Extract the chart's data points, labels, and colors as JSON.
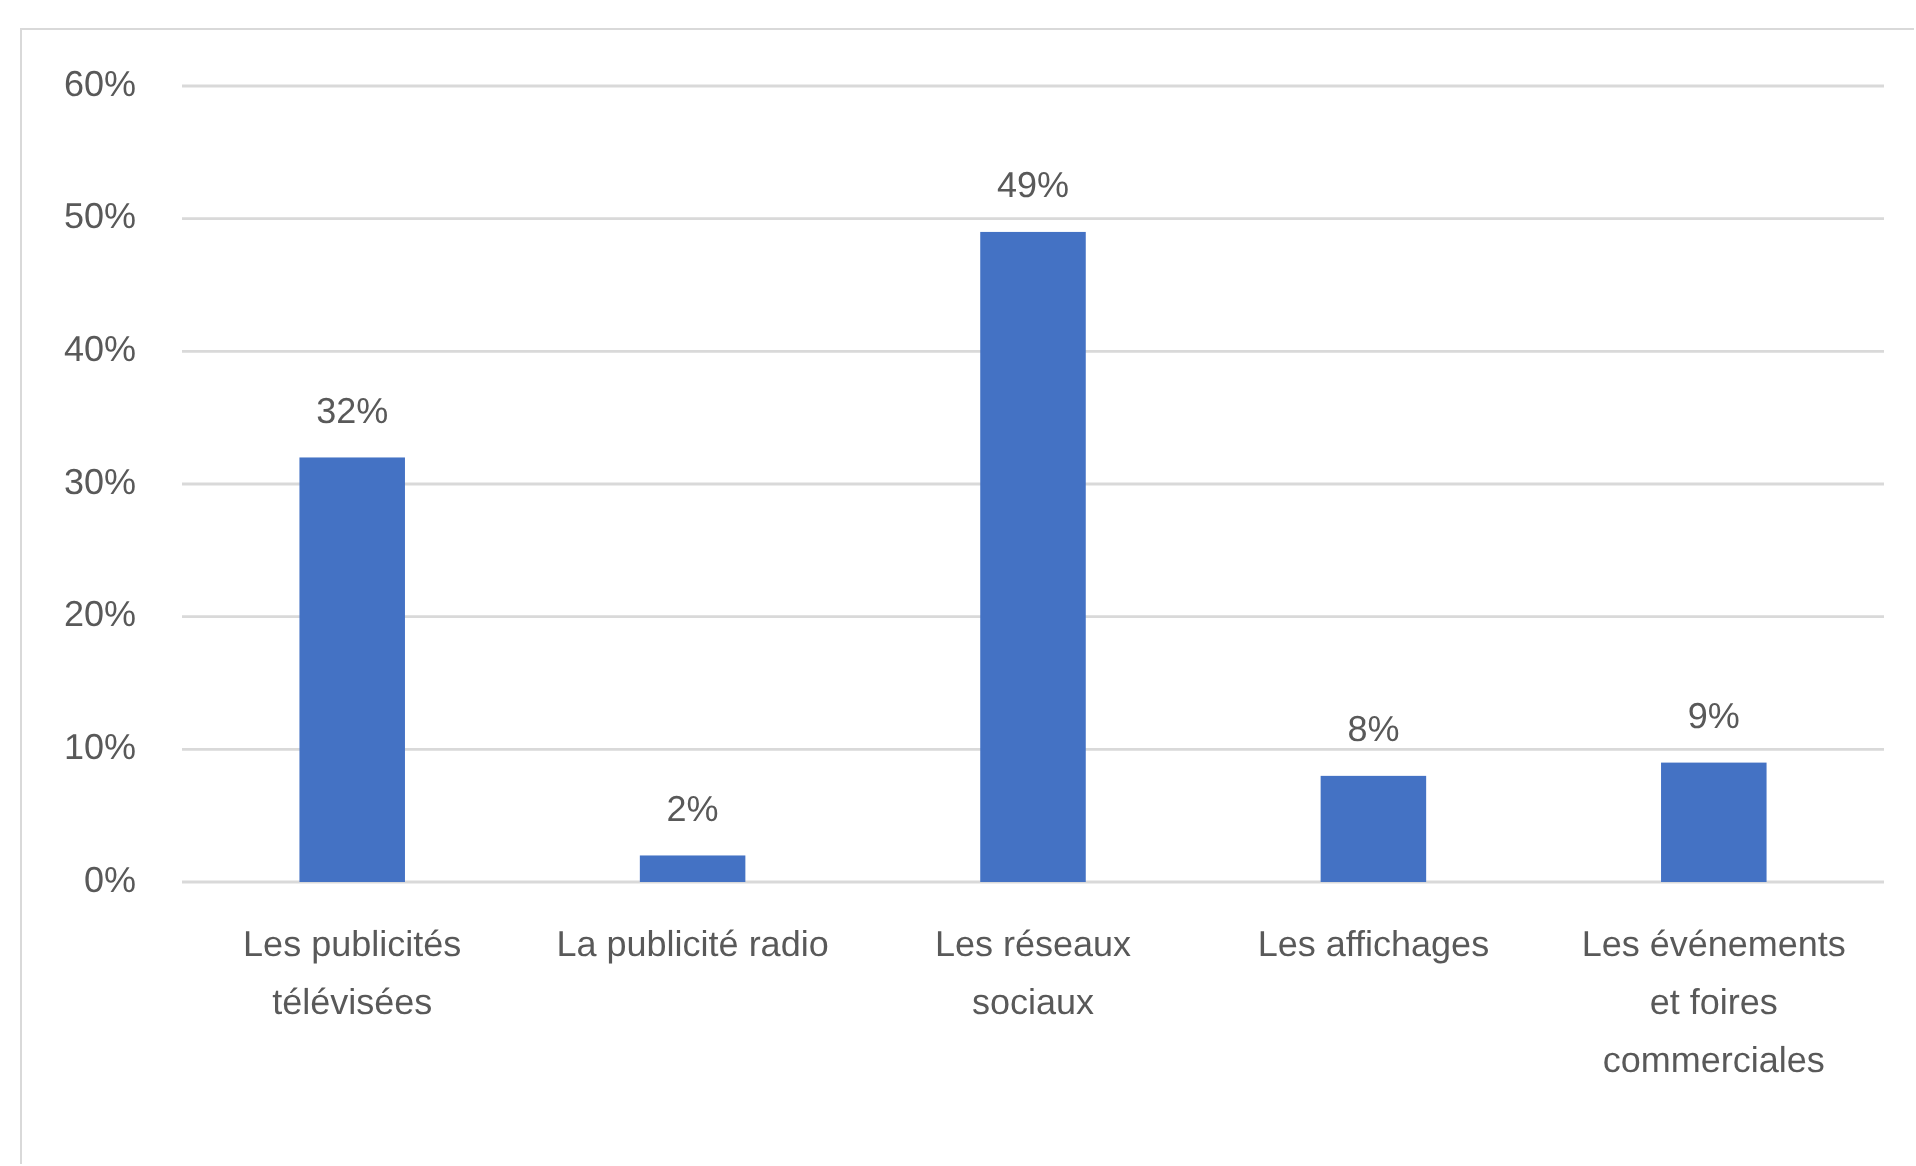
{
  "chart_data": {
    "type": "bar",
    "categories": [
      "Les publicités télévisées",
      "La publicité radio",
      "Les réseaux sociaux",
      "Les affichages",
      "Les événements et foires commerciales"
    ],
    "values": [
      32,
      2,
      49,
      8,
      9
    ],
    "value_labels": [
      "32%",
      "2%",
      "49%",
      "8%",
      "9%"
    ],
    "color": "#4472c4",
    "ylim": [
      0,
      60
    ],
    "yticks": [
      {
        "value": 0,
        "label": "0%"
      },
      {
        "value": 10,
        "label": "10%"
      },
      {
        "value": 20,
        "label": "20%"
      },
      {
        "value": 30,
        "label": "30%"
      },
      {
        "value": 40,
        "label": "40%"
      },
      {
        "value": 50,
        "label": "50%"
      },
      {
        "value": 60,
        "label": "60%"
      }
    ],
    "grid": "y"
  }
}
